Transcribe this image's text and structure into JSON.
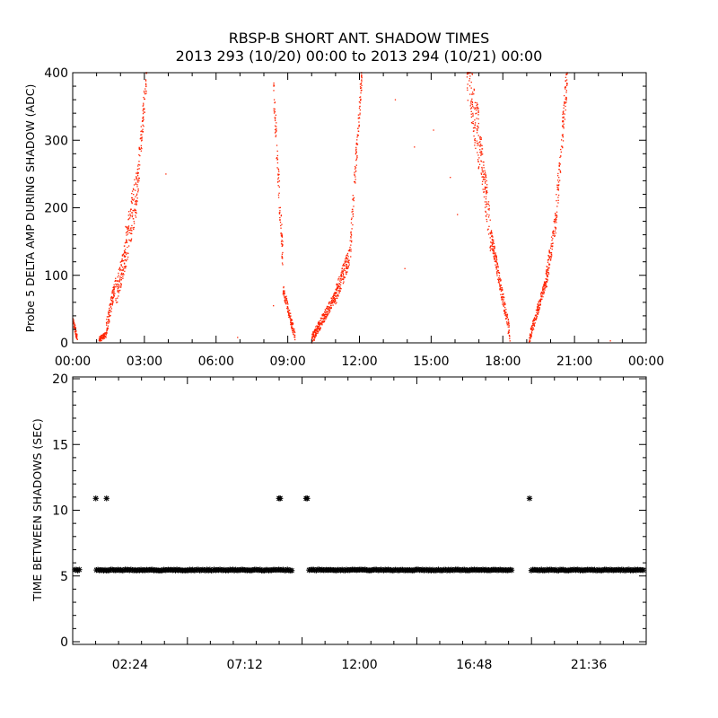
{
  "title_line1": "RBSP-B SHORT ANT. SHADOW TIMES",
  "title_line2": "2013 293 (10/20) 00:00 to 2013 294 (10/21) 00:00",
  "colors": {
    "shadow_amp": "#ff2200",
    "time_between": "#000000",
    "axes": "#000000"
  },
  "chart_data": [
    {
      "type": "scatter",
      "ylabel": "Probe 5 DELTA AMP DURING SHADOW (ADC)",
      "xlim": [
        "00:00",
        "24:00"
      ],
      "ylim": [
        0,
        400
      ],
      "x_ticks": [
        "00:00",
        "03:00",
        "06:00",
        "09:00",
        "12:00",
        "15:00",
        "18:00",
        "21:00",
        "00:00"
      ],
      "y_ticks": [
        "0",
        "100",
        "200",
        "300",
        "400"
      ],
      "marker": "dot",
      "series": [
        {
          "segments": [
            {
              "x_start": "00:00",
              "x_end": "00:12",
              "y_start": 35,
              "y_end": 5,
              "spread": 6
            },
            {
              "x_start": "01:06",
              "x_end": "01:24",
              "y_start": 5,
              "y_end": 12,
              "spread": 4
            },
            {
              "x_start": "01:24",
              "x_end": "01:48",
              "y_start": 20,
              "y_end": 90,
              "spread": 12
            },
            {
              "x_start": "01:48",
              "x_end": "02:12",
              "y_start": 70,
              "y_end": 130,
              "spread": 20
            },
            {
              "x_start": "02:12",
              "x_end": "02:42",
              "y_start": 140,
              "y_end": 230,
              "spread": 35
            },
            {
              "x_start": "02:42",
              "x_end": "03:06",
              "y_start": 230,
              "y_end": 400,
              "spread": 25
            },
            {
              "x_start": "08:24",
              "x_end": "08:48",
              "y_start": 380,
              "y_end": 120,
              "spread": 25
            },
            {
              "x_start": "08:48",
              "x_end": "09:18",
              "y_start": 80,
              "y_end": 10,
              "spread": 8
            },
            {
              "x_start": "10:00",
              "x_end": "11:00",
              "y_start": 5,
              "y_end": 70,
              "spread": 8
            },
            {
              "x_start": "11:00",
              "x_end": "11:36",
              "y_start": 70,
              "y_end": 130,
              "spread": 14
            },
            {
              "x_start": "11:36",
              "x_end": "12:06",
              "y_start": 130,
              "y_end": 400,
              "spread": 20
            },
            {
              "x_start": "16:30",
              "x_end": "17:00",
              "y_start": 400,
              "y_end": 300,
              "spread": 45
            },
            {
              "x_start": "17:00",
              "x_end": "17:30",
              "y_start": 300,
              "y_end": 160,
              "spread": 30
            },
            {
              "x_start": "17:30",
              "x_end": "18:18",
              "y_start": 160,
              "y_end": 10,
              "spread": 12
            },
            {
              "x_start": "19:06",
              "x_end": "19:48",
              "y_start": 5,
              "y_end": 90,
              "spread": 8
            },
            {
              "x_start": "19:48",
              "x_end": "20:12",
              "y_start": 90,
              "y_end": 180,
              "spread": 16
            },
            {
              "x_start": "20:12",
              "x_end": "20:42",
              "y_start": 180,
              "y_end": 400,
              "spread": 25
            }
          ],
          "isolated_points": [
            {
              "x": "03:54",
              "y": 250
            },
            {
              "x": "14:18",
              "y": 290
            },
            {
              "x": "15:06",
              "y": 315
            },
            {
              "x": "16:06",
              "y": 190
            },
            {
              "x": "08:24",
              "y": 55
            },
            {
              "x": "06:54",
              "y": 8
            },
            {
              "x": "13:30",
              "y": 360
            },
            {
              "x": "22:30",
              "y": 3
            },
            {
              "x": "15:48",
              "y": 245
            },
            {
              "x": "13:54",
              "y": 110
            }
          ]
        }
      ]
    },
    {
      "type": "scatter",
      "ylabel": "TIME BETWEEN SHADOWS (SEC)",
      "xlim": [
        "00:00",
        "24:00"
      ],
      "ylim": [
        0,
        20
      ],
      "x_ticks": [
        "02:24",
        "07:12",
        "12:00",
        "16:48",
        "21:36"
      ],
      "y_ticks": [
        "0",
        "5",
        "10",
        "15",
        "20"
      ],
      "marker": "asterisk",
      "series": [
        {
          "baseline_value": 5.45,
          "baseline_ranges": [
            [
              "00:00",
              "00:24"
            ],
            [
              "00:54",
              "09:18"
            ],
            [
              "09:48",
              "18:30"
            ],
            [
              "19:06",
              "24:00"
            ]
          ],
          "points": [
            {
              "x": "00:58",
              "y": 10.9
            },
            {
              "x": "01:25",
              "y": 10.9
            },
            {
              "x": "08:38",
              "y": 10.9
            },
            {
              "x": "08:41",
              "y": 10.9
            },
            {
              "x": "09:46",
              "y": 10.9
            },
            {
              "x": "09:49",
              "y": 10.9
            },
            {
              "x": "19:07",
              "y": 10.9
            }
          ]
        }
      ]
    }
  ]
}
